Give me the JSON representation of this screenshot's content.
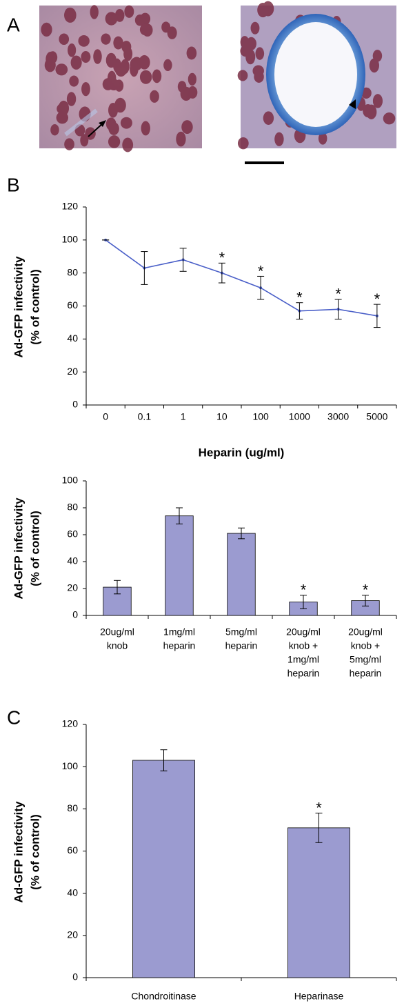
{
  "figure": {
    "panel": "A"
  },
  "chart_data": [
    {
      "type": "line",
      "panel": "B",
      "ylabel": [
        "Ad-GFP infectivity",
        "(% of control)"
      ],
      "xlabel": "Heparin (ug/ml)",
      "categories": [
        "0",
        "0.1",
        "1",
        "10",
        "100",
        "1000",
        "3000",
        "5000"
      ],
      "values": [
        100,
        83,
        88,
        80,
        71,
        57,
        58,
        54
      ],
      "errors": [
        0,
        10,
        7,
        6,
        7,
        5,
        6,
        7
      ],
      "significance": [
        null,
        null,
        null,
        "*",
        "*",
        "*",
        "*",
        "*"
      ],
      "color": "#4a5fc8",
      "ylim": [
        0,
        120
      ],
      "yticks": [
        0,
        20,
        40,
        60,
        80,
        100,
        120
      ]
    },
    {
      "type": "bar",
      "ylabel": [
        "Ad-GFP infectivity",
        "(% of control)"
      ],
      "categories": [
        [
          "20ug/ml",
          "knob"
        ],
        [
          "1mg/ml",
          "heparin"
        ],
        [
          "5mg/ml",
          "heparin"
        ],
        [
          "20ug/ml",
          "knob +",
          "1mg/ml",
          "heparin"
        ],
        [
          "20ug/ml",
          "knob +",
          "5mg/ml",
          "heparin"
        ]
      ],
      "values": [
        21,
        74,
        61,
        10,
        11
      ],
      "errors": [
        5,
        6,
        4,
        5,
        4
      ],
      "significance": [
        null,
        null,
        null,
        "*",
        "*"
      ],
      "color": "#9b9bd0",
      "ylim": [
        0,
        100
      ],
      "yticks": [
        0,
        20,
        40,
        60,
        80,
        100
      ]
    },
    {
      "type": "bar",
      "panel": "C",
      "ylabel": [
        "Ad-GFP infectivity",
        "(% of control)"
      ],
      "categories": [
        [
          "Chondroitinase"
        ],
        [
          "Heparinase"
        ]
      ],
      "values": [
        103,
        71
      ],
      "errors": [
        5,
        7
      ],
      "significance": [
        null,
        "*"
      ],
      "color": "#9b9bd0",
      "ylim": [
        0,
        120
      ],
      "yticks": [
        0,
        20,
        40,
        60,
        80,
        100,
        120
      ]
    }
  ]
}
